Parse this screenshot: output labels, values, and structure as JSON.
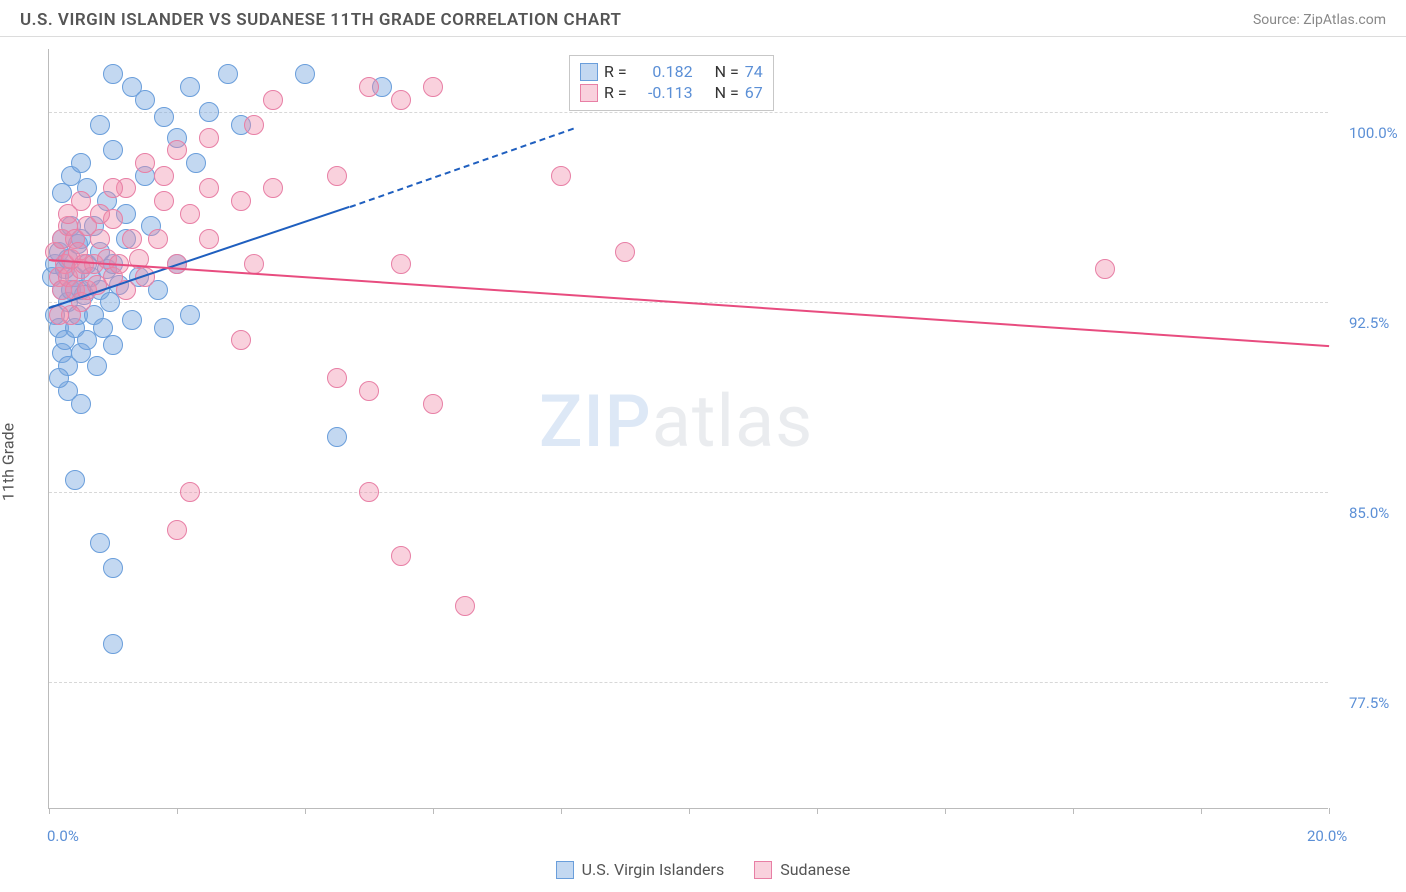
{
  "header": {
    "title": "U.S. VIRGIN ISLANDER VS SUDANESE 11TH GRADE CORRELATION CHART",
    "source": "Source: ZipAtlas.com"
  },
  "ylabel": "11th Grade",
  "watermark": {
    "part1": "ZIP",
    "part2": "atlas"
  },
  "chart": {
    "type": "scatter",
    "xlim": [
      0,
      20
    ],
    "ylim": [
      72.5,
      102.5
    ],
    "xticks": [
      0,
      2,
      4,
      6,
      8,
      10,
      12,
      14,
      16,
      18,
      20
    ],
    "xtick_labels": {
      "0": "0.0%",
      "20": "20.0%"
    },
    "yticks": [
      77.5,
      85.0,
      92.5,
      100.0
    ],
    "ytick_labels": [
      "77.5%",
      "85.0%",
      "92.5%",
      "100.0%"
    ],
    "background": "#ffffff",
    "grid_color": "#d8d8d8",
    "axis_color": "#bbbbbb",
    "label_color": "#5b8fd6",
    "series": [
      {
        "key": "usvi",
        "label": "U.S. Virgin Islanders",
        "fill": "rgba(121,168,225,0.45)",
        "stroke": "#6a9edb",
        "line_color": "#1f5fbf",
        "marker_radius": 10,
        "R": "0.182",
        "N": "74",
        "trend": {
          "x1": 0,
          "y1": 92.3,
          "x2": 4.7,
          "y2": 96.3,
          "x2_dash": 8.2,
          "y2_dash": 99.4
        },
        "points": [
          [
            0.05,
            93.5
          ],
          [
            0.1,
            94.0
          ],
          [
            0.1,
            92.0
          ],
          [
            0.15,
            94.5
          ],
          [
            0.15,
            91.5
          ],
          [
            0.2,
            93.0
          ],
          [
            0.2,
            95.0
          ],
          [
            0.2,
            90.5
          ],
          [
            0.25,
            93.8
          ],
          [
            0.25,
            91.0
          ],
          [
            0.3,
            94.2
          ],
          [
            0.3,
            92.5
          ],
          [
            0.3,
            90.0
          ],
          [
            0.35,
            93.0
          ],
          [
            0.35,
            95.5
          ],
          [
            0.4,
            91.5
          ],
          [
            0.4,
            93.5
          ],
          [
            0.45,
            94.8
          ],
          [
            0.45,
            92.0
          ],
          [
            0.5,
            93.0
          ],
          [
            0.5,
            90.5
          ],
          [
            0.5,
            95.0
          ],
          [
            0.55,
            92.8
          ],
          [
            0.6,
            94.0
          ],
          [
            0.6,
            91.0
          ],
          [
            0.65,
            93.5
          ],
          [
            0.7,
            92.0
          ],
          [
            0.7,
            95.5
          ],
          [
            0.75,
            90.0
          ],
          [
            0.8,
            93.0
          ],
          [
            0.8,
            94.5
          ],
          [
            0.85,
            91.5
          ],
          [
            0.9,
            93.8
          ],
          [
            0.95,
            92.5
          ],
          [
            1.0,
            94.0
          ],
          [
            1.0,
            90.8
          ],
          [
            1.1,
            93.2
          ],
          [
            1.2,
            95.0
          ],
          [
            1.3,
            91.8
          ],
          [
            1.4,
            93.5
          ],
          [
            0.3,
            89.0
          ],
          [
            0.5,
            88.5
          ],
          [
            0.15,
            89.5
          ],
          [
            1.7,
            93.0
          ],
          [
            1.8,
            91.5
          ],
          [
            2.0,
            94.0
          ],
          [
            2.2,
            92.0
          ],
          [
            0.4,
            85.5
          ],
          [
            0.8,
            83.0
          ],
          [
            1.0,
            82.0
          ],
          [
            1.0,
            79.0
          ],
          [
            0.8,
            99.5
          ],
          [
            1.0,
            101.5
          ],
          [
            1.3,
            101.0
          ],
          [
            1.5,
            100.5
          ],
          [
            2.0,
            99.0
          ],
          [
            2.2,
            101.0
          ],
          [
            2.5,
            100.0
          ],
          [
            1.0,
            98.5
          ],
          [
            1.5,
            97.5
          ],
          [
            1.8,
            99.8
          ],
          [
            2.3,
            98.0
          ],
          [
            2.8,
            101.5
          ],
          [
            3.0,
            99.5
          ],
          [
            4.0,
            101.5
          ],
          [
            4.5,
            87.2
          ],
          [
            5.2,
            101.0
          ],
          [
            0.6,
            97.0
          ],
          [
            0.9,
            96.5
          ],
          [
            1.2,
            96.0
          ],
          [
            1.6,
            95.5
          ],
          [
            0.2,
            96.8
          ],
          [
            0.35,
            97.5
          ],
          [
            0.5,
            98.0
          ]
        ]
      },
      {
        "key": "sudanese",
        "label": "Sudanese",
        "fill": "rgba(240,140,170,0.40)",
        "stroke": "#e87fa5",
        "line_color": "#e84c7f",
        "marker_radius": 10,
        "R": "-0.113",
        "N": "67",
        "trend": {
          "x1": 0,
          "y1": 94.2,
          "x2": 20,
          "y2": 90.8
        },
        "points": [
          [
            0.1,
            94.5
          ],
          [
            0.15,
            93.5
          ],
          [
            0.2,
            95.0
          ],
          [
            0.2,
            93.0
          ],
          [
            0.25,
            94.0
          ],
          [
            0.3,
            93.5
          ],
          [
            0.3,
            95.5
          ],
          [
            0.35,
            94.2
          ],
          [
            0.4,
            93.0
          ],
          [
            0.4,
            95.0
          ],
          [
            0.45,
            94.5
          ],
          [
            0.5,
            93.8
          ],
          [
            0.5,
            92.5
          ],
          [
            0.55,
            94.0
          ],
          [
            0.6,
            93.0
          ],
          [
            0.6,
            95.5
          ],
          [
            0.7,
            94.0
          ],
          [
            0.75,
            93.2
          ],
          [
            0.8,
            95.0
          ],
          [
            0.9,
            94.2
          ],
          [
            1.0,
            93.5
          ],
          [
            1.0,
            95.8
          ],
          [
            1.1,
            94.0
          ],
          [
            1.2,
            93.0
          ],
          [
            1.3,
            95.0
          ],
          [
            1.4,
            94.2
          ],
          [
            1.5,
            93.5
          ],
          [
            1.7,
            95.0
          ],
          [
            1.8,
            96.5
          ],
          [
            2.0,
            94.0
          ],
          [
            2.2,
            96.0
          ],
          [
            2.5,
            95.0
          ],
          [
            1.2,
            97.0
          ],
          [
            1.5,
            98.0
          ],
          [
            1.8,
            97.5
          ],
          [
            2.0,
            98.5
          ],
          [
            2.5,
            97.0
          ],
          [
            3.0,
            96.5
          ],
          [
            2.5,
            99.0
          ],
          [
            3.2,
            99.5
          ],
          [
            3.5,
            100.5
          ],
          [
            4.5,
            97.5
          ],
          [
            5.0,
            101.0
          ],
          [
            5.5,
            100.5
          ],
          [
            6.0,
            101.0
          ],
          [
            2.0,
            83.5
          ],
          [
            2.2,
            85.0
          ],
          [
            3.0,
            91.0
          ],
          [
            3.2,
            94.0
          ],
          [
            3.5,
            97.0
          ],
          [
            4.5,
            89.5
          ],
          [
            5.0,
            89.0
          ],
          [
            5.0,
            85.0
          ],
          [
            5.5,
            82.5
          ],
          [
            5.5,
            94.0
          ],
          [
            6.0,
            88.5
          ],
          [
            6.5,
            80.5
          ],
          [
            8.0,
            97.5
          ],
          [
            9.0,
            94.5
          ],
          [
            9.0,
            101.0
          ],
          [
            16.5,
            93.8
          ],
          [
            0.5,
            96.5
          ],
          [
            0.8,
            96.0
          ],
          [
            1.0,
            97.0
          ],
          [
            0.3,
            96.0
          ],
          [
            0.35,
            92.0
          ],
          [
            0.15,
            92.0
          ]
        ]
      }
    ]
  },
  "legend": {
    "items": [
      {
        "label": "U.S. Virgin Islanders",
        "fill": "rgba(121,168,225,0.45)",
        "stroke": "#6a9edb"
      },
      {
        "label": "Sudanese",
        "fill": "rgba(240,140,170,0.40)",
        "stroke": "#e87fa5"
      }
    ]
  },
  "stats_box": {
    "r_label": "R =",
    "n_label": "N ="
  }
}
